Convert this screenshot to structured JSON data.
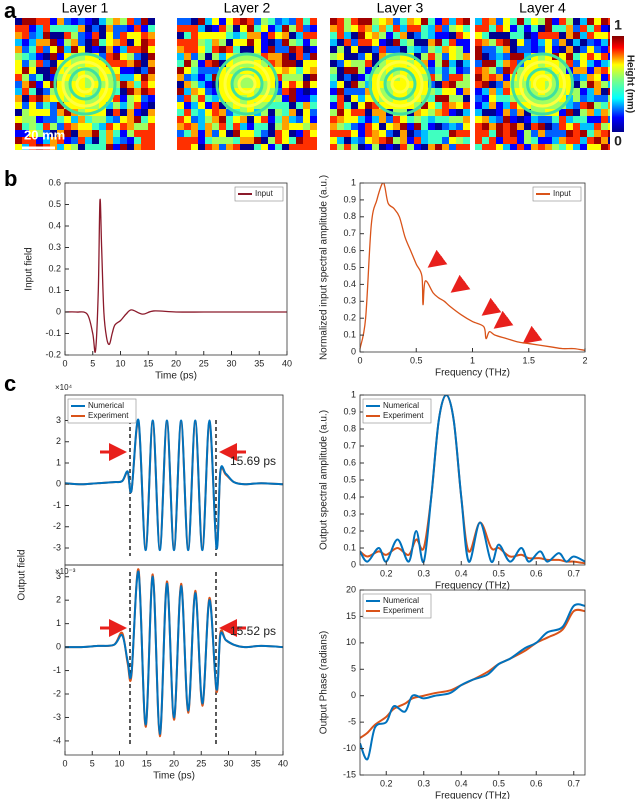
{
  "panel_labels": [
    "a",
    "b",
    "c"
  ],
  "height_map": {
    "layers": [
      "Layer 1",
      "Layer 2",
      "Layer 3",
      "Layer 4"
    ],
    "scale_bar": "20 mm",
    "colorbar": {
      "label": "Height (mm)",
      "ylim": [
        0,
        1
      ],
      "yticks": [
        0,
        1
      ]
    }
  },
  "chart_data": [
    {
      "type": "line",
      "xlabel": "Time (ps)",
      "ylabel": "Input field",
      "legend": "top-right",
      "xlim": [
        0,
        40
      ],
      "xticks": [
        0,
        5,
        10,
        15,
        20,
        25,
        30,
        35,
        40
      ],
      "ylim": [
        -0.2,
        0.6
      ],
      "yticks": [
        -0.2,
        -0.1,
        0,
        0.1,
        0.2,
        0.3,
        0.4,
        0.5,
        0.6
      ],
      "x": [
        0,
        2,
        4,
        5,
        5.5,
        6,
        6.3,
        6.6,
        7,
        7.5,
        8,
        8.5,
        9,
        10,
        11,
        12,
        14,
        16,
        20,
        25,
        30,
        35,
        40
      ],
      "series": [
        {
          "name": "Input",
          "color": "#8b1a2b",
          "values": [
            0,
            0,
            -0.01,
            -0.1,
            -0.18,
            0.1,
            0.52,
            0.3,
            0,
            -0.12,
            -0.15,
            -0.1,
            -0.06,
            -0.04,
            -0.01,
            0.01,
            -0.01,
            0.005,
            0,
            0,
            0,
            0,
            0
          ]
        }
      ]
    },
    {
      "type": "line",
      "xlabel": "Frequency (THz)",
      "ylabel": "Normalized input spectral amplitude (a.u.)",
      "legend": "top-right",
      "xlim": [
        0,
        2
      ],
      "xticks": [
        0,
        0.5,
        1,
        1.5,
        2
      ],
      "ylim": [
        0,
        1
      ],
      "yticks": [
        0,
        0.1,
        0.2,
        0.3,
        0.4,
        0.5,
        0.6,
        0.7,
        0.8,
        0.9,
        1
      ],
      "x": [
        0,
        0.05,
        0.1,
        0.15,
        0.2,
        0.22,
        0.25,
        0.3,
        0.35,
        0.4,
        0.45,
        0.5,
        0.55,
        0.56,
        0.58,
        0.65,
        0.7,
        0.75,
        0.8,
        0.9,
        1.0,
        1.1,
        1.12,
        1.15,
        1.2,
        1.3,
        1.4,
        1.5,
        1.6,
        1.7,
        1.8,
        1.9,
        2.0
      ],
      "series": [
        {
          "name": "Input",
          "color": "#d95319",
          "values": [
            0.02,
            0.2,
            0.75,
            0.9,
            1.0,
            0.98,
            0.88,
            0.85,
            0.8,
            0.68,
            0.6,
            0.52,
            0.45,
            0.28,
            0.42,
            0.35,
            0.32,
            0.3,
            0.27,
            0.22,
            0.18,
            0.15,
            0.08,
            0.12,
            0.1,
            0.08,
            0.06,
            0.05,
            0.04,
            0.03,
            0.02,
            0.02,
            0.01
          ]
        }
      ]
    },
    {
      "type": "line",
      "ylabel": "Output field",
      "multiplier": "×10⁴",
      "annotation": "15.69 ps",
      "legend": "top-left",
      "xlim": [
        0,
        40
      ],
      "ylim": [
        -3.8,
        4.2
      ],
      "yticks": [
        -3,
        -2,
        -1,
        0,
        1,
        2,
        3
      ],
      "x": [
        0,
        3,
        6,
        9,
        10.5,
        11.5,
        12.2,
        13.5,
        14.8,
        16.1,
        17.4,
        18.7,
        20,
        21.3,
        22.6,
        23.9,
        25.2,
        26.5,
        27.8,
        28.5,
        29.5,
        31,
        33,
        36,
        40
      ],
      "series": [
        {
          "name": "Numerical",
          "color": "#0072bd",
          "values": [
            0.05,
            0,
            0.05,
            0.1,
            0.15,
            0.6,
            -0.3,
            3.0,
            -3.1,
            3.0,
            -3.1,
            3.0,
            -3.1,
            3.0,
            -3.1,
            3.0,
            -3.1,
            3.0,
            -3.0,
            0.6,
            0.5,
            0.1,
            0,
            0.05,
            0
          ]
        },
        {
          "name": "Experiment",
          "color": "#d95319",
          "values": [
            0.05,
            0,
            0.05,
            0.1,
            0.15,
            0.55,
            -0.3,
            2.9,
            -3.0,
            2.9,
            -3.0,
            2.9,
            -3.0,
            2.9,
            -3.0,
            2.9,
            -3.0,
            2.9,
            -2.9,
            0.55,
            0.45,
            0.1,
            0,
            0.05,
            0
          ]
        }
      ]
    },
    {
      "type": "line",
      "xlabel": "Time (ps)",
      "multiplier": "×10⁻³",
      "annotation": "15.52 ps",
      "legend": "none",
      "xlim": [
        0,
        40
      ],
      "xticks": [
        0,
        5,
        10,
        15,
        20,
        25,
        30,
        35,
        40
      ],
      "ylim": [
        -4.6,
        3.5
      ],
      "yticks": [
        -4,
        -3,
        -2,
        -1,
        0,
        1,
        2,
        3
      ],
      "x": [
        0,
        3,
        6,
        9,
        10.5,
        11.5,
        12.2,
        13.5,
        14.8,
        16.1,
        17.4,
        18.7,
        20,
        21.3,
        22.6,
        23.9,
        25.2,
        26.5,
        27.8,
        28.5,
        29.5,
        31,
        33,
        36,
        40
      ],
      "series": [
        {
          "name": "Numerical",
          "color": "#0072bd",
          "values": [
            0,
            0,
            0.05,
            0.1,
            0.5,
            -0.6,
            -1.1,
            3.2,
            -3.3,
            3.0,
            -3.7,
            2.7,
            -3.0,
            2.6,
            -2.7,
            2.3,
            -2.4,
            2.0,
            -1.8,
            0.5,
            0.3,
            0.1,
            0,
            0.05,
            0
          ]
        },
        {
          "name": "Experiment",
          "color": "#d95319",
          "values": [
            0,
            0,
            0.05,
            0.1,
            0.6,
            -0.7,
            -1.2,
            3.3,
            -3.4,
            3.1,
            -3.8,
            2.8,
            -3.1,
            2.7,
            -2.8,
            2.4,
            -2.5,
            2.1,
            -1.9,
            0.6,
            0.3,
            0.1,
            0,
            0.05,
            0
          ]
        }
      ]
    },
    {
      "type": "line",
      "xlabel": "Frequency (THz)",
      "ylabel": "Output spectral amplitude (a.u.)",
      "legend": "top-left",
      "xlim": [
        0.13,
        0.73
      ],
      "xticks": [
        0.2,
        0.3,
        0.4,
        0.5,
        0.6,
        0.7
      ],
      "ylim": [
        0,
        1
      ],
      "yticks": [
        0,
        0.1,
        0.2,
        0.3,
        0.4,
        0.5,
        0.6,
        0.7,
        0.8,
        0.9,
        1
      ],
      "x": [
        0.13,
        0.15,
        0.18,
        0.2,
        0.23,
        0.26,
        0.28,
        0.3,
        0.32,
        0.34,
        0.36,
        0.38,
        0.4,
        0.42,
        0.45,
        0.48,
        0.5,
        0.53,
        0.56,
        0.58,
        0.61,
        0.63,
        0.66,
        0.68,
        0.7,
        0.73
      ],
      "series": [
        {
          "name": "Numerical",
          "color": "#0072bd",
          "values": [
            0.08,
            0.02,
            0.1,
            0.02,
            0.15,
            0.02,
            0.2,
            0.02,
            0.4,
            0.85,
            1.0,
            0.85,
            0.4,
            0.02,
            0.25,
            0.02,
            0.12,
            0.02,
            0.1,
            0.02,
            0.08,
            0.02,
            0.07,
            0.02,
            0.05,
            0.02
          ]
        },
        {
          "name": "Experiment",
          "color": "#d95319",
          "values": [
            0.08,
            0.05,
            0.08,
            0.06,
            0.1,
            0.06,
            0.15,
            0.1,
            0.4,
            0.85,
            1.0,
            0.85,
            0.4,
            0.08,
            0.25,
            0.1,
            0.1,
            0.05,
            0.06,
            0.04,
            0.04,
            0.03,
            0.03,
            0.02,
            0.02,
            0.01
          ]
        }
      ]
    },
    {
      "type": "line",
      "xlabel": "Frequency (THz)",
      "ylabel": "Output Phase (radians)",
      "legend": "top-left",
      "xlim": [
        0.13,
        0.73
      ],
      "xticks": [
        0.2,
        0.3,
        0.4,
        0.5,
        0.6,
        0.7
      ],
      "ylim": [
        -15,
        20
      ],
      "yticks": [
        -15,
        -10,
        -5,
        0,
        5,
        10,
        15,
        20
      ],
      "x": [
        0.13,
        0.15,
        0.17,
        0.2,
        0.22,
        0.25,
        0.27,
        0.3,
        0.33,
        0.37,
        0.4,
        0.43,
        0.47,
        0.5,
        0.53,
        0.57,
        0.6,
        0.63,
        0.67,
        0.7,
        0.73
      ],
      "series": [
        {
          "name": "Numerical",
          "color": "#0072bd",
          "values": [
            -9,
            -12,
            -6,
            -5,
            -2,
            -3,
            0,
            -0.5,
            0,
            0.5,
            2,
            3,
            4,
            6,
            7,
            9,
            10,
            12,
            13,
            17,
            17
          ]
        },
        {
          "name": "Experiment",
          "color": "#d95319",
          "values": [
            -8,
            -7,
            -5.5,
            -4,
            -2.5,
            -1.5,
            -0.5,
            0,
            0.5,
            1,
            2,
            3,
            4.5,
            6,
            7,
            8.5,
            10,
            11,
            12.5,
            16,
            16
          ]
        }
      ]
    }
  ]
}
